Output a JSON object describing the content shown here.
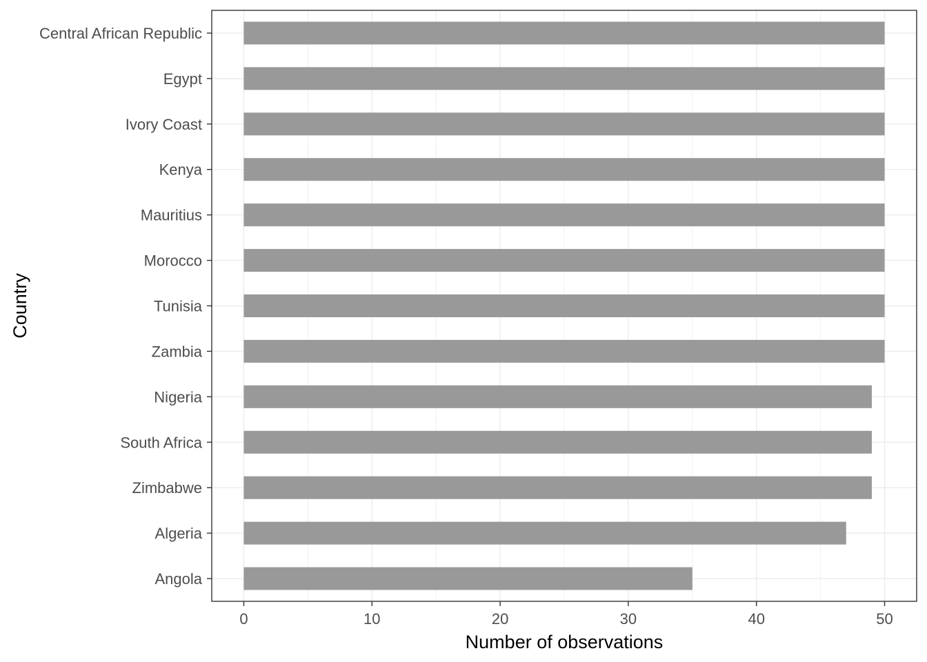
{
  "chart_data": {
    "type": "bar",
    "orientation": "horizontal",
    "title": "",
    "xlabel": "Number of observations",
    "ylabel": "Country",
    "categories": [
      "Central African Republic",
      "Egypt",
      "Ivory Coast",
      "Kenya",
      "Mauritius",
      "Morocco",
      "Tunisia",
      "Zambia",
      "Nigeria",
      "South Africa",
      "Zimbabwe",
      "Algeria",
      "Angola"
    ],
    "values": [
      50,
      50,
      50,
      50,
      50,
      50,
      50,
      50,
      49,
      49,
      49,
      47,
      35
    ],
    "xlim": [
      -2.5,
      52.5
    ],
    "xticks": [
      0,
      10,
      20,
      30,
      40,
      50
    ],
    "xtick_labels": [
      "0",
      "10",
      "20",
      "30",
      "40",
      "50"
    ],
    "grid": true,
    "legend": "none",
    "bar_color": "#999999",
    "grid_color": "#ebebeb",
    "panel_border_color": "#333333"
  }
}
